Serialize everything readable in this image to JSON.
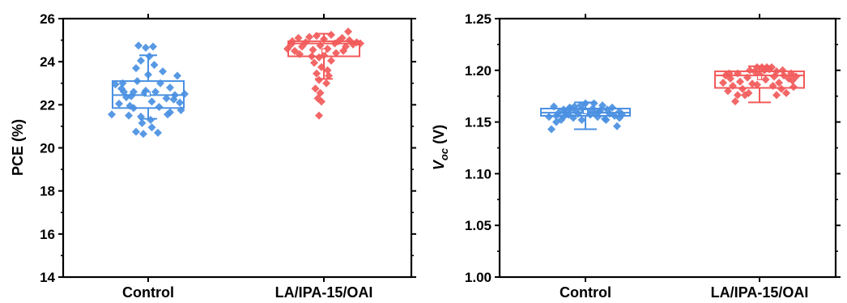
{
  "chart_data": [
    {
      "type": "box",
      "ylabel": "PCE (%)",
      "ylim": [
        14,
        26
      ],
      "yticks": [
        14,
        16,
        18,
        20,
        22,
        24,
        26
      ],
      "ytick_labels": [
        "14",
        "16",
        "18",
        "20",
        "22",
        "24",
        "26"
      ],
      "categories": [
        "Control",
        "LA/IPA-15/OAI"
      ],
      "series": [
        {
          "color": "#4a90e2",
          "box": {
            "q1": 21.85,
            "median": 22.45,
            "q3": 23.1,
            "mean": 22.5,
            "whisker_low": 21.35,
            "whisker_high": 24.3
          },
          "points": [
            {
              "x": -0.3,
              "y": 21.55
            },
            {
              "x": -0.27,
              "y": 22.95
            },
            {
              "x": -0.24,
              "y": 22.05
            },
            {
              "x": -0.21,
              "y": 23.0
            },
            {
              "x": -0.18,
              "y": 22.35
            },
            {
              "x": -0.15,
              "y": 21.95
            },
            {
              "x": -0.12,
              "y": 22.6
            },
            {
              "x": -0.09,
              "y": 23.1
            },
            {
              "x": -0.06,
              "y": 21.45
            },
            {
              "x": -0.03,
              "y": 22.55
            },
            {
              "x": 0.0,
              "y": 23.4
            },
            {
              "x": 0.03,
              "y": 22.15
            },
            {
              "x": 0.06,
              "y": 22.6
            },
            {
              "x": 0.09,
              "y": 21.9
            },
            {
              "x": 0.12,
              "y": 23.55
            },
            {
              "x": 0.15,
              "y": 22.3
            },
            {
              "x": 0.18,
              "y": 22.8
            },
            {
              "x": 0.21,
              "y": 22.25
            },
            {
              "x": 0.24,
              "y": 23.35
            },
            {
              "x": 0.27,
              "y": 21.75
            },
            {
              "x": 0.3,
              "y": 22.5
            },
            {
              "x": -0.22,
              "y": 22.75
            },
            {
              "x": -0.14,
              "y": 22.4
            },
            {
              "x": -0.02,
              "y": 22.65
            },
            {
              "x": 0.1,
              "y": 23.0
            },
            {
              "x": 0.22,
              "y": 22.45
            },
            {
              "x": -0.08,
              "y": 24.75
            },
            {
              "x": -0.02,
              "y": 24.65
            },
            {
              "x": 0.04,
              "y": 24.7
            },
            {
              "x": 0.01,
              "y": 24.25
            },
            {
              "x": -0.06,
              "y": 24.05
            },
            {
              "x": 0.05,
              "y": 23.85
            },
            {
              "x": -0.1,
              "y": 23.7
            },
            {
              "x": -0.1,
              "y": 20.75
            },
            {
              "x": -0.04,
              "y": 20.65
            },
            {
              "x": 0.03,
              "y": 20.95
            },
            {
              "x": 0.08,
              "y": 20.7
            },
            {
              "x": -0.05,
              "y": 21.15
            },
            {
              "x": 0.02,
              "y": 21.3
            },
            {
              "x": -0.16,
              "y": 21.5
            },
            {
              "x": 0.16,
              "y": 21.55
            },
            {
              "x": -0.12,
              "y": 21.85
            },
            {
              "x": 0.18,
              "y": 21.65
            },
            {
              "x": -0.2,
              "y": 22.6
            },
            {
              "x": 0.26,
              "y": 22.1
            }
          ]
        },
        {
          "color": "#f25a5a",
          "box": {
            "q1": 24.25,
            "median": 24.85,
            "q3": 24.95,
            "mean": 24.5,
            "whisker_low": 23.2,
            "whisker_high": 25.3
          },
          "points": [
            {
              "x": -0.3,
              "y": 24.6
            },
            {
              "x": -0.27,
              "y": 24.8
            },
            {
              "x": -0.24,
              "y": 24.5
            },
            {
              "x": -0.21,
              "y": 25.1
            },
            {
              "x": -0.18,
              "y": 24.7
            },
            {
              "x": -0.15,
              "y": 24.9
            },
            {
              "x": -0.12,
              "y": 25.15
            },
            {
              "x": -0.09,
              "y": 24.55
            },
            {
              "x": -0.06,
              "y": 25.2
            },
            {
              "x": -0.03,
              "y": 24.75
            },
            {
              "x": 0.0,
              "y": 25.05
            },
            {
              "x": 0.03,
              "y": 24.6
            },
            {
              "x": 0.06,
              "y": 25.25
            },
            {
              "x": 0.09,
              "y": 24.85
            },
            {
              "x": 0.12,
              "y": 24.95
            },
            {
              "x": 0.15,
              "y": 25.1
            },
            {
              "x": 0.18,
              "y": 24.7
            },
            {
              "x": 0.21,
              "y": 25.0
            },
            {
              "x": 0.24,
              "y": 24.8
            },
            {
              "x": 0.27,
              "y": 24.9
            },
            {
              "x": 0.3,
              "y": 24.85
            },
            {
              "x": 0.2,
              "y": 25.4
            },
            {
              "x": 0.1,
              "y": 24.4
            },
            {
              "x": -0.2,
              "y": 24.35
            },
            {
              "x": -0.1,
              "y": 24.25
            },
            {
              "x": 0.0,
              "y": 24.3
            },
            {
              "x": 0.16,
              "y": 24.5
            },
            {
              "x": -0.26,
              "y": 24.95
            },
            {
              "x": -0.04,
              "y": 24.2
            },
            {
              "x": 0.06,
              "y": 24.05
            },
            {
              "x": -0.08,
              "y": 23.95
            },
            {
              "x": -0.02,
              "y": 23.75
            },
            {
              "x": 0.03,
              "y": 23.6
            },
            {
              "x": -0.06,
              "y": 23.45
            },
            {
              "x": 0.04,
              "y": 23.35
            },
            {
              "x": -0.04,
              "y": 23.15
            },
            {
              "x": 0.02,
              "y": 23.0
            },
            {
              "x": -0.07,
              "y": 22.75
            },
            {
              "x": -0.03,
              "y": 22.55
            },
            {
              "x": -0.05,
              "y": 22.3
            },
            {
              "x": -0.02,
              "y": 22.15
            },
            {
              "x": -0.04,
              "y": 21.5
            }
          ]
        }
      ]
    },
    {
      "type": "box",
      "ylabel_main": "V",
      "ylabel_sub": "oc",
      "ylabel_unit": " (V)",
      "ylim": [
        1.0,
        1.25
      ],
      "yticks": [
        1.0,
        1.05,
        1.1,
        1.15,
        1.2,
        1.25
      ],
      "ytick_labels": [
        "1.00",
        "1.05",
        "1.10",
        "1.15",
        "1.20",
        "1.25"
      ],
      "categories": [
        "Control",
        "LA/IPA-15/OAI"
      ],
      "series": [
        {
          "color": "#4a90e2",
          "box": {
            "q1": 1.156,
            "median": 1.159,
            "q3": 1.163,
            "mean": 1.16,
            "whisker_low": 1.143,
            "whisker_high": 1.169
          },
          "points": [
            {
              "x": -0.3,
              "y": 1.155
            },
            {
              "x": -0.28,
              "y": 1.143
            },
            {
              "x": -0.26,
              "y": 1.165
            },
            {
              "x": -0.24,
              "y": 1.156
            },
            {
              "x": -0.22,
              "y": 1.159
            },
            {
              "x": -0.2,
              "y": 1.152
            },
            {
              "x": -0.18,
              "y": 1.162
            },
            {
              "x": -0.16,
              "y": 1.16
            },
            {
              "x": -0.14,
              "y": 1.157
            },
            {
              "x": -0.12,
              "y": 1.163
            },
            {
              "x": -0.1,
              "y": 1.154
            },
            {
              "x": -0.08,
              "y": 1.161
            },
            {
              "x": -0.06,
              "y": 1.158
            },
            {
              "x": -0.04,
              "y": 1.166
            },
            {
              "x": -0.02,
              "y": 1.162
            },
            {
              "x": 0.0,
              "y": 1.168
            },
            {
              "x": 0.02,
              "y": 1.16
            },
            {
              "x": 0.04,
              "y": 1.157
            },
            {
              "x": 0.06,
              "y": 1.163
            },
            {
              "x": 0.08,
              "y": 1.159
            },
            {
              "x": 0.1,
              "y": 1.155
            },
            {
              "x": 0.12,
              "y": 1.161
            },
            {
              "x": 0.14,
              "y": 1.166
            },
            {
              "x": 0.16,
              "y": 1.153
            },
            {
              "x": 0.18,
              "y": 1.162
            },
            {
              "x": 0.2,
              "y": 1.158
            },
            {
              "x": 0.22,
              "y": 1.164
            },
            {
              "x": 0.24,
              "y": 1.156
            },
            {
              "x": 0.26,
              "y": 1.146
            },
            {
              "x": 0.28,
              "y": 1.16
            },
            {
              "x": 0.3,
              "y": 1.157
            },
            {
              "x": -0.24,
              "y": 1.15
            },
            {
              "x": -0.13,
              "y": 1.164
            },
            {
              "x": -0.03,
              "y": 1.152
            },
            {
              "x": 0.07,
              "y": 1.168
            },
            {
              "x": 0.17,
              "y": 1.152
            },
            {
              "x": -0.18,
              "y": 1.155
            },
            {
              "x": 0.28,
              "y": 1.154
            },
            {
              "x": 0.11,
              "y": 1.16
            },
            {
              "x": -0.09,
              "y": 1.165
            }
          ]
        },
        {
          "color": "#f25a5a",
          "box": {
            "q1": 1.183,
            "median": 1.195,
            "q3": 1.199,
            "mean": 1.193,
            "whisker_low": 1.169,
            "whisker_high": 1.204
          },
          "points": [
            {
              "x": -0.3,
              "y": 1.188
            },
            {
              "x": -0.28,
              "y": 1.195
            },
            {
              "x": -0.26,
              "y": 1.18
            },
            {
              "x": -0.24,
              "y": 1.192
            },
            {
              "x": -0.22,
              "y": 1.185
            },
            {
              "x": -0.2,
              "y": 1.17
            },
            {
              "x": -0.18,
              "y": 1.197
            },
            {
              "x": -0.16,
              "y": 1.189
            },
            {
              "x": -0.14,
              "y": 1.182
            },
            {
              "x": -0.12,
              "y": 1.176
            },
            {
              "x": -0.1,
              "y": 1.193
            },
            {
              "x": -0.08,
              "y": 1.2
            },
            {
              "x": -0.06,
              "y": 1.187
            },
            {
              "x": -0.04,
              "y": 1.199
            },
            {
              "x": -0.02,
              "y": 1.203
            },
            {
              "x": 0.0,
              "y": 1.196
            },
            {
              "x": 0.02,
              "y": 1.203
            },
            {
              "x": 0.04,
              "y": 1.2
            },
            {
              "x": 0.06,
              "y": 1.203
            },
            {
              "x": 0.08,
              "y": 1.201
            },
            {
              "x": 0.1,
              "y": 1.203
            },
            {
              "x": 0.12,
              "y": 1.194
            },
            {
              "x": 0.14,
              "y": 1.199
            },
            {
              "x": 0.16,
              "y": 1.188
            },
            {
              "x": 0.18,
              "y": 1.182
            },
            {
              "x": 0.2,
              "y": 1.195
            },
            {
              "x": 0.22,
              "y": 1.178
            },
            {
              "x": 0.24,
              "y": 1.192
            },
            {
              "x": 0.26,
              "y": 1.197
            },
            {
              "x": 0.28,
              "y": 1.184
            },
            {
              "x": 0.3,
              "y": 1.194
            },
            {
              "x": -0.02,
              "y": 1.186
            },
            {
              "x": 0.05,
              "y": 1.191
            },
            {
              "x": -0.09,
              "y": 1.178
            },
            {
              "x": 0.11,
              "y": 1.185
            },
            {
              "x": 0.19,
              "y": 1.2
            },
            {
              "x": -0.18,
              "y": 1.176
            },
            {
              "x": 0.27,
              "y": 1.19
            },
            {
              "x": -0.25,
              "y": 1.197
            },
            {
              "x": 0.14,
              "y": 1.176
            }
          ]
        }
      ]
    }
  ]
}
